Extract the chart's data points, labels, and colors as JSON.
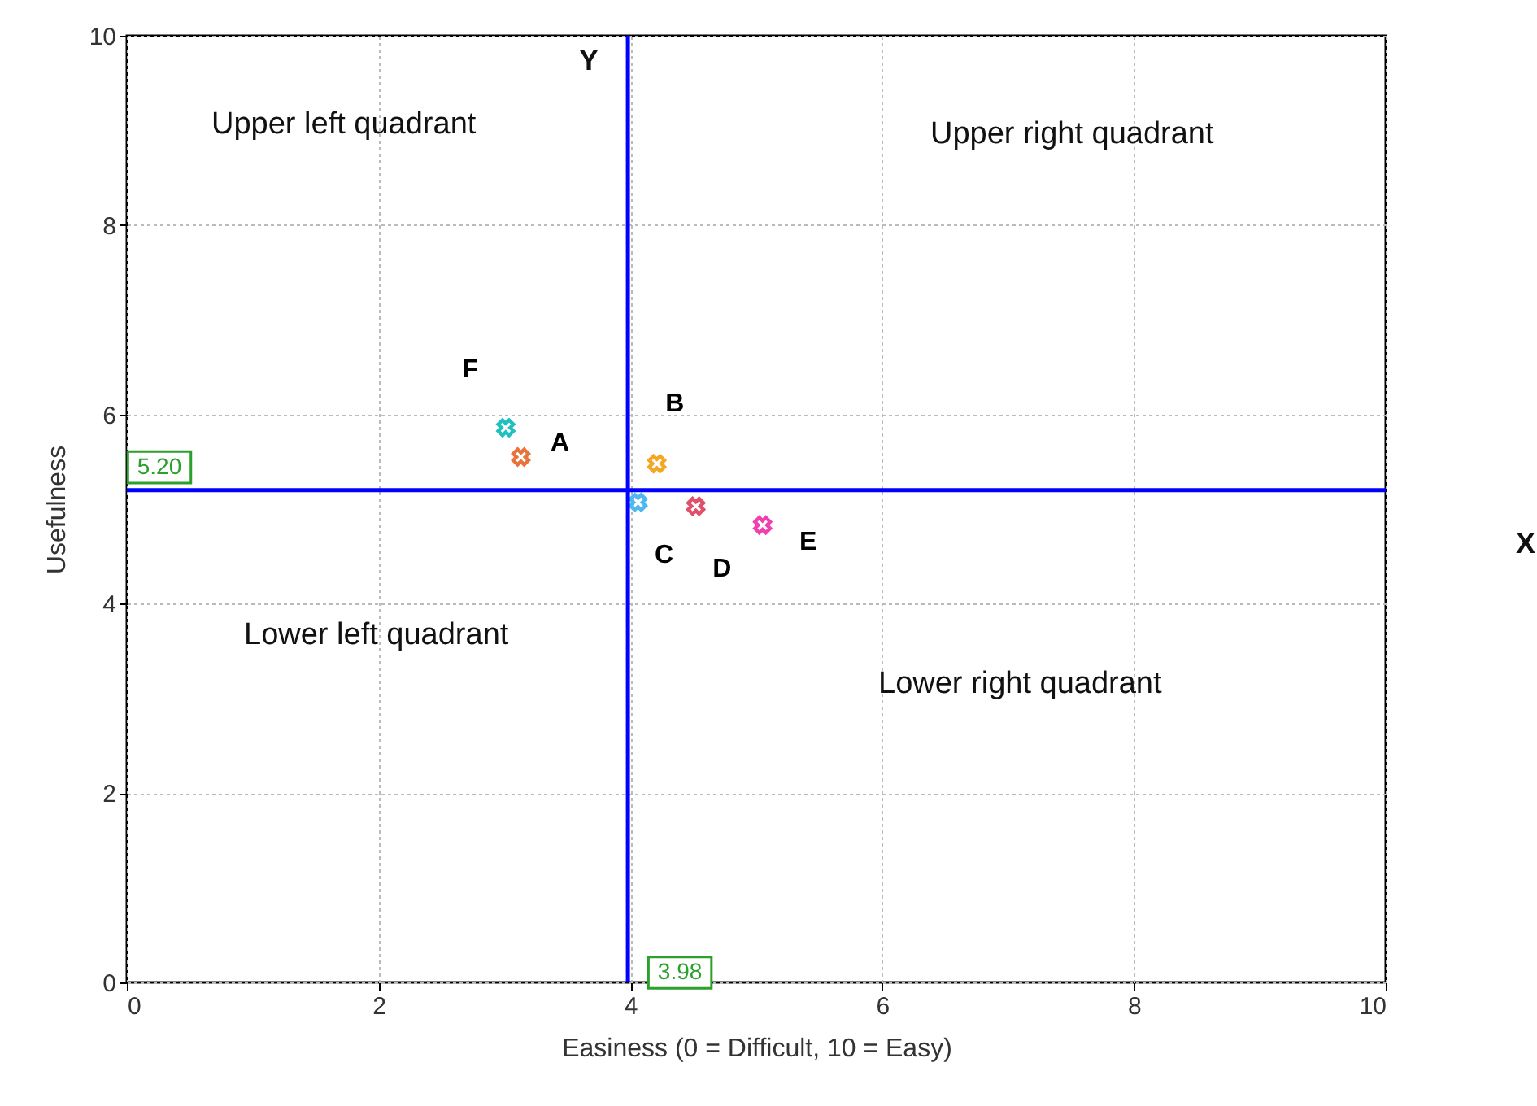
{
  "chart_data": {
    "type": "scatter",
    "xlabel": "Easiness (0 = Difficult, 10 = Easy)",
    "ylabel": "Usefulness",
    "xlim": [
      0,
      10
    ],
    "ylim": [
      0,
      10
    ],
    "xticks": [
      0,
      2,
      4,
      6,
      8,
      10
    ],
    "yticks": [
      0,
      2,
      4,
      6,
      8,
      10
    ],
    "grid": true,
    "marker": "cross",
    "legend": false,
    "series": [
      {
        "name": "F",
        "color": "#20c0c0",
        "x": [
          3.01
        ],
        "values": [
          5.86
        ]
      },
      {
        "name": "A",
        "color": "#e8743b",
        "x": [
          3.13
        ],
        "values": [
          5.55
        ]
      },
      {
        "name": "B",
        "color": "#f5a623",
        "x": [
          4.21
        ],
        "values": [
          5.48
        ]
      },
      {
        "name": "C",
        "color": "#4fb8f0",
        "x": [
          4.06
        ],
        "values": [
          5.07
        ]
      },
      {
        "name": "D",
        "color": "#e0506a",
        "x": [
          4.52
        ],
        "values": [
          5.03
        ]
      },
      {
        "name": "E",
        "color": "#f040b0",
        "x": [
          5.05
        ],
        "values": [
          4.83
        ]
      }
    ],
    "ref_lines": [
      {
        "axis": "y",
        "value": 5.2,
        "label": "5.20",
        "color": "#0000ff"
      },
      {
        "axis": "x",
        "value": 3.98,
        "label": "3.98",
        "color": "#0000ff"
      }
    ],
    "annotations": [
      "Upper left quadrant",
      "Upper right quadrant",
      "Lower left quadrant",
      "Lower right quadrant",
      "Y",
      "X"
    ]
  }
}
